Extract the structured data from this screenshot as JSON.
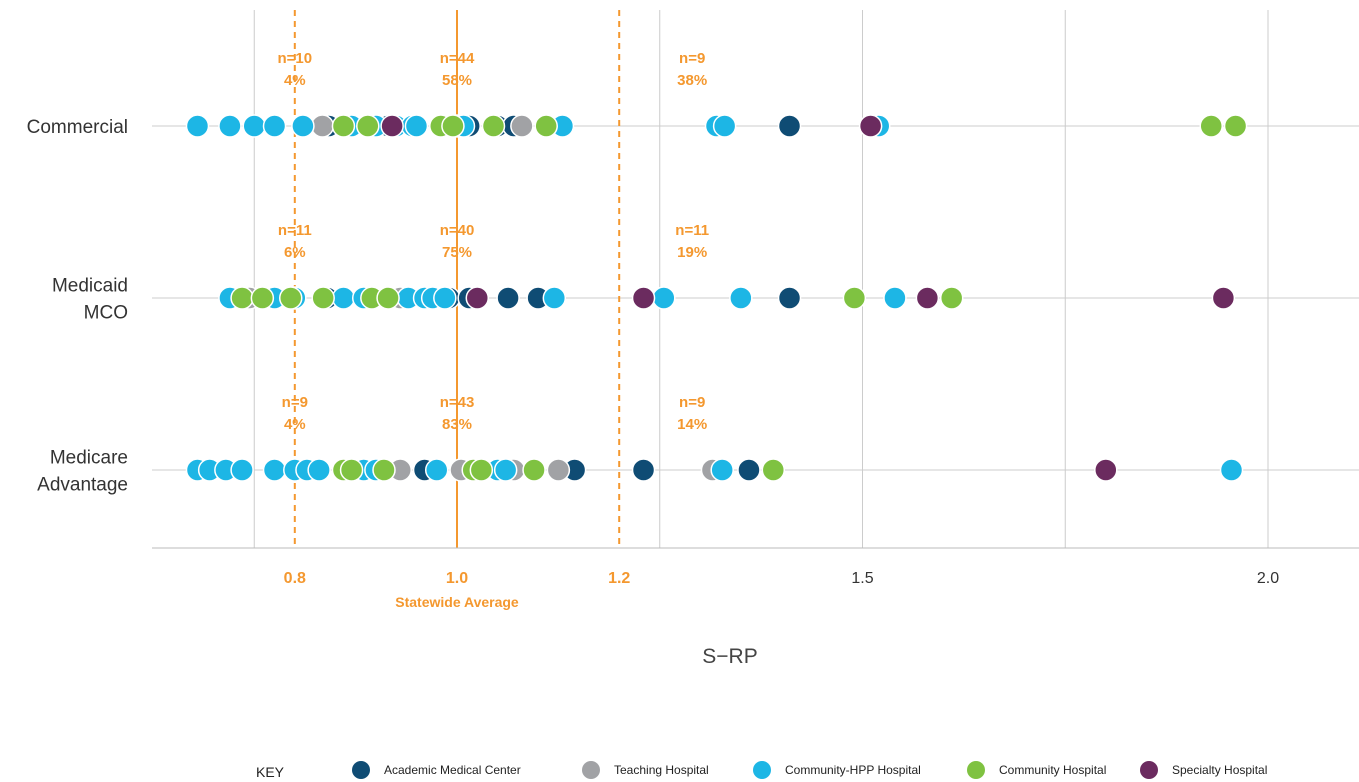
{
  "chart_data": {
    "type": "scatter",
    "xlabel": "S−RP",
    "categories": [
      "Commercial",
      "Medicaid MCO",
      "Medicare Advantage"
    ],
    "category_labels": [
      [
        "Commercial"
      ],
      [
        "Medicaid",
        "MCO"
      ],
      [
        "Medicare",
        "Advantage"
      ]
    ],
    "xlim": [
      0.63,
      2.22
    ],
    "xticks": [
      {
        "value": 0.8,
        "label": "0.8",
        "style": "orange"
      },
      {
        "value": 1.0,
        "label": "1.0",
        "style": "orange"
      },
      {
        "value": 1.2,
        "label": "1.2",
        "style": "orange"
      },
      {
        "value": 1.5,
        "label": "1.5",
        "style": "gray"
      },
      {
        "value": 2.0,
        "label": "2.0",
        "style": "gray"
      }
    ],
    "grid_x": [
      0.75,
      1.25,
      1.5,
      1.75,
      2.0
    ],
    "reference_lines": [
      {
        "value": 0.8,
        "style": "dashed"
      },
      {
        "value": 1.0,
        "style": "solid",
        "label": "Statewide Average"
      },
      {
        "value": 1.2,
        "style": "dashed"
      }
    ],
    "annotations": [
      {
        "row": "Commercial",
        "x": 0.8,
        "n": "n=10",
        "pct": "4%"
      },
      {
        "row": "Commercial",
        "x": 1.0,
        "n": "n=44",
        "pct": "58%"
      },
      {
        "row": "Commercial",
        "x": 1.29,
        "n": "n=9",
        "pct": "38%"
      },
      {
        "row": "Medicaid MCO",
        "x": 0.8,
        "n": "n=11",
        "pct": "6%"
      },
      {
        "row": "Medicaid MCO",
        "x": 1.0,
        "n": "n=40",
        "pct": "75%"
      },
      {
        "row": "Medicaid MCO",
        "x": 1.29,
        "n": "n=11",
        "pct": "19%"
      },
      {
        "row": "Medicare Advantage",
        "x": 0.8,
        "n": "n=9",
        "pct": "4%"
      },
      {
        "row": "Medicare Advantage",
        "x": 1.0,
        "n": "n=43",
        "pct": "83%"
      },
      {
        "row": "Medicare Advantage",
        "x": 1.29,
        "n": "n=9",
        "pct": "14%"
      }
    ],
    "series": [
      {
        "name": "Academic Medical Center",
        "color": "#0f4c74",
        "points": {
          "Commercial": [
            0.842,
            0.915,
            1.015,
            1.05,
            1.07,
            1.41
          ],
          "Medicaid MCO": [
            0.84,
            0.99,
            1.015,
            1.063,
            1.1,
            1.41
          ],
          "Medicare Advantage": [
            0.96,
            1.145,
            1.23,
            1.36
          ]
        }
      },
      {
        "name": "Teaching Hospital",
        "color": "#a1a2a5",
        "points": {
          "Commercial": [
            0.834,
            1.08
          ],
          "Medicaid MCO": [
            0.744,
            0.93
          ],
          "Medicare Advantage": [
            0.93,
            1.005,
            1.07,
            1.125,
            1.315
          ]
        }
      },
      {
        "name": "Community-HPP Hospital",
        "color": "#1db6e5",
        "points": {
          "Commercial": [
            0.68,
            0.72,
            0.75,
            0.775,
            0.81,
            0.87,
            0.9,
            0.925,
            0.945,
            0.95,
            1.0,
            1.008,
            1.13,
            1.32,
            1.33,
            1.52
          ],
          "Medicaid MCO": [
            0.72,
            0.775,
            0.8,
            0.86,
            0.885,
            0.94,
            0.96,
            0.97,
            0.985,
            1.12,
            1.255,
            1.35,
            1.54
          ],
          "Medicare Advantage": [
            0.68,
            0.695,
            0.715,
            0.735,
            0.775,
            0.8,
            0.815,
            0.83,
            0.885,
            0.9,
            0.975,
            1.05,
            1.06,
            1.327,
            1.955
          ]
        }
      },
      {
        "name": "Community Hospital",
        "color": "#7fc241",
        "points": {
          "Commercial": [
            0.86,
            0.89,
            0.98,
            0.995,
            1.045,
            1.11,
            1.93,
            1.96
          ],
          "Medicaid MCO": [
            0.735,
            0.76,
            0.795,
            0.835,
            0.895,
            0.915,
            1.49,
            1.61
          ],
          "Medicare Advantage": [
            0.86,
            0.87,
            0.91,
            1.02,
            1.03,
            1.095,
            1.39
          ]
        }
      },
      {
        "name": "Specialty Hospital",
        "color": "#6b2b5f",
        "points": {
          "Commercial": [
            0.92,
            1.51
          ],
          "Medicaid MCO": [
            1.025,
            1.23,
            1.58,
            1.945
          ],
          "Medicare Advantage": [
            1.8
          ]
        }
      }
    ]
  },
  "legend": {
    "title": "KEY",
    "items": [
      {
        "label": "Academic Medical Center",
        "color": "#0f4c74"
      },
      {
        "label": "Teaching Hospital",
        "color": "#a1a2a5"
      },
      {
        "label": "Community-HPP Hospital",
        "color": "#1db6e5"
      },
      {
        "label": "Community Hospital",
        "color": "#7fc241"
      },
      {
        "label": "Specialty Hospital",
        "color": "#6b2b5f"
      }
    ]
  },
  "colors": {
    "reference": "#f4982f",
    "grid": "#cccccc",
    "axis": "#bbbbbb"
  }
}
